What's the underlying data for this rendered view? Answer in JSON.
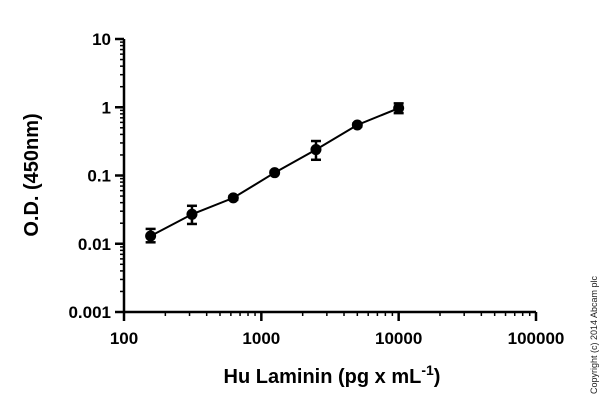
{
  "chart_data": {
    "type": "scatter",
    "xscale": "log",
    "yscale": "log",
    "xlim": [
      100,
      100000
    ],
    "ylim": [
      0.001,
      10
    ],
    "xticks": [
      {
        "value": 100,
        "label": "100"
      },
      {
        "value": 1000,
        "label": "1000"
      },
      {
        "value": 10000,
        "label": "10000"
      },
      {
        "value": 100000,
        "label": "100000"
      }
    ],
    "yticks": [
      {
        "value": 0.001,
        "label": "0.001"
      },
      {
        "value": 0.01,
        "label": "0.01"
      },
      {
        "value": 0.1,
        "label": "0.1"
      },
      {
        "value": 1,
        "label": "1"
      },
      {
        "value": 10,
        "label": "10"
      }
    ],
    "xlabel": {
      "main": "Hu Laminin (pg x mL",
      "superscript": "-1",
      "suffix": ")"
    },
    "ylabel": "O.D. (450nm)",
    "grid": false,
    "legend": "none",
    "series": [
      {
        "color": "#000000",
        "marker": "circle",
        "line": "fitted-curve",
        "points": [
          {
            "x": 156.25,
            "y": 0.013,
            "err_low": 0.0105,
            "err_high": 0.0165
          },
          {
            "x": 312.5,
            "y": 0.027,
            "err_low": 0.0195,
            "err_high": 0.036
          },
          {
            "x": 625,
            "y": 0.047,
            "err_low": 0.044,
            "err_high": 0.05
          },
          {
            "x": 1250,
            "y": 0.11,
            "err_low": 0.105,
            "err_high": 0.116
          },
          {
            "x": 2500,
            "y": 0.24,
            "err_low": 0.17,
            "err_high": 0.32
          },
          {
            "x": 5000,
            "y": 0.55,
            "err_low": 0.52,
            "err_high": 0.58
          },
          {
            "x": 10000,
            "y": 0.97,
            "err_low": 0.82,
            "err_high": 1.14
          }
        ]
      }
    ]
  },
  "copyright": "Copyright (c) 2014 Abcam plc"
}
